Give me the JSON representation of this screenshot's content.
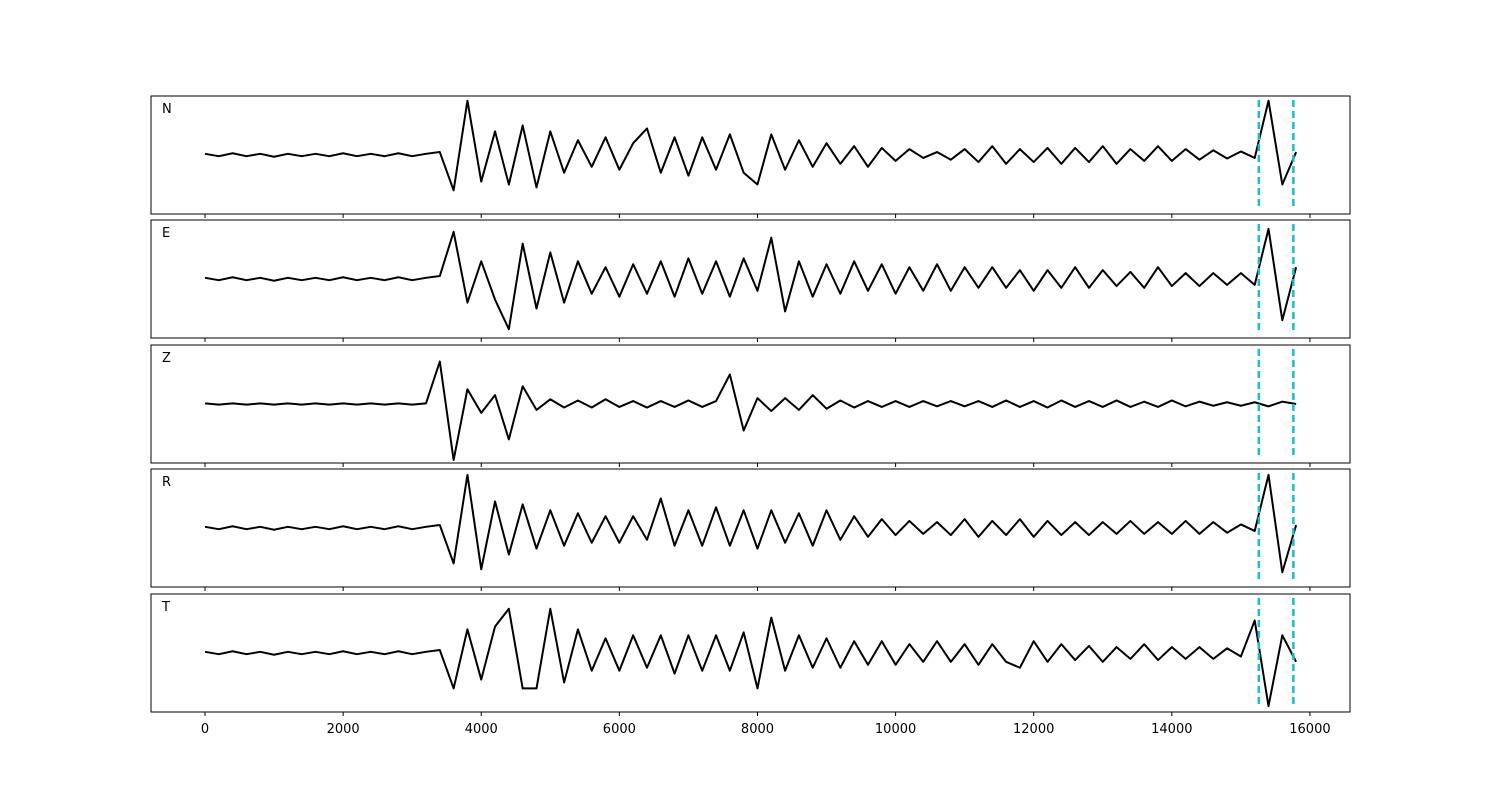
{
  "chart_data": [
    {
      "type": "line",
      "label": "N",
      "color": "#000000",
      "xlim": [
        -782,
        16580
      ],
      "ylim": [
        -1,
        1
      ],
      "vlines": [
        15260,
        15760
      ],
      "vline_color": "#17becf",
      "x": [
        0,
        200,
        400,
        600,
        800,
        1000,
        1200,
        1400,
        1600,
        1800,
        2000,
        2200,
        2400,
        2600,
        2800,
        3000,
        3200,
        3400,
        3600,
        3800,
        4000,
        4200,
        4400,
        4600,
        4800,
        5000,
        5200,
        5400,
        5600,
        5800,
        6000,
        6200,
        6400,
        6600,
        6800,
        7000,
        7200,
        7400,
        7600,
        7800,
        8000,
        8200,
        8400,
        8600,
        8800,
        9000,
        9200,
        9400,
        9600,
        9800,
        10000,
        10200,
        10400,
        10600,
        10800,
        11000,
        11200,
        11400,
        11600,
        11800,
        12000,
        12200,
        12400,
        12600,
        12800,
        13000,
        13200,
        13400,
        13600,
        13800,
        14000,
        14200,
        14400,
        14600,
        14800,
        15000,
        15200,
        15400,
        15600,
        15800
      ],
      "values": [
        0.02,
        -0.02,
        0.03,
        -0.02,
        0.02,
        -0.03,
        0.02,
        -0.02,
        0.02,
        -0.02,
        0.03,
        -0.02,
        0.02,
        -0.02,
        0.03,
        -0.02,
        0.02,
        0.05,
        -0.6,
        0.92,
        -0.45,
        0.4,
        -0.5,
        0.5,
        -0.55,
        0.4,
        -0.3,
        0.25,
        -0.2,
        0.3,
        -0.25,
        0.2,
        0.45,
        -0.3,
        0.3,
        -0.35,
        0.3,
        -0.25,
        0.35,
        -0.3,
        -0.5,
        0.35,
        -0.25,
        0.25,
        -0.2,
        0.2,
        -0.15,
        0.15,
        -0.2,
        0.12,
        -0.1,
        0.1,
        -0.05,
        0.05,
        -0.08,
        0.1,
        -0.12,
        0.15,
        -0.15,
        0.1,
        -0.12,
        0.12,
        -0.15,
        0.12,
        -0.12,
        0.15,
        -0.15,
        0.1,
        -0.1,
        0.15,
        -0.1,
        0.1,
        -0.08,
        0.08,
        -0.06,
        0.06,
        -0.05,
        0.92,
        -0.5,
        0.05
      ]
    },
    {
      "type": "line",
      "label": "E",
      "color": "#000000",
      "xlim": [
        -782,
        16580
      ],
      "ylim": [
        -1,
        1
      ],
      "vlines": [
        15260,
        15760
      ],
      "vline_color": "#17becf",
      "x": [
        0,
        200,
        400,
        600,
        800,
        1000,
        1200,
        1400,
        1600,
        1800,
        2000,
        2200,
        2400,
        2600,
        2800,
        3000,
        3200,
        3400,
        3600,
        3800,
        4000,
        4200,
        4400,
        4600,
        4800,
        5000,
        5200,
        5400,
        5600,
        5800,
        6000,
        6200,
        6400,
        6600,
        6800,
        7000,
        7200,
        7400,
        7600,
        7800,
        8000,
        8200,
        8400,
        8600,
        8800,
        9000,
        9200,
        9400,
        9600,
        9800,
        10000,
        10200,
        10400,
        10600,
        10800,
        11000,
        11200,
        11400,
        11600,
        11800,
        12000,
        12200,
        12400,
        12600,
        12800,
        13000,
        13200,
        13400,
        13600,
        13800,
        14000,
        14200,
        14400,
        14600,
        14800,
        15000,
        15200,
        15400,
        15600,
        15800
      ],
      "values": [
        0.02,
        -0.02,
        0.03,
        -0.02,
        0.02,
        -0.03,
        0.02,
        -0.02,
        0.02,
        -0.02,
        0.03,
        -0.02,
        0.02,
        -0.02,
        0.03,
        -0.02,
        0.02,
        0.05,
        0.8,
        -0.4,
        0.3,
        -0.35,
        -0.85,
        0.6,
        -0.5,
        0.45,
        -0.4,
        0.3,
        -0.25,
        0.2,
        -0.3,
        0.25,
        -0.25,
        0.3,
        -0.3,
        0.35,
        -0.25,
        0.3,
        -0.3,
        0.35,
        -0.2,
        0.7,
        -0.55,
        0.3,
        -0.3,
        0.25,
        -0.25,
        0.3,
        -0.2,
        0.25,
        -0.25,
        0.2,
        -0.2,
        0.25,
        -0.2,
        0.2,
        -0.15,
        0.2,
        -0.15,
        0.15,
        -0.2,
        0.15,
        -0.15,
        0.2,
        -0.15,
        0.15,
        -0.12,
        0.12,
        -0.15,
        0.2,
        -0.12,
        0.1,
        -0.12,
        0.1,
        -0.1,
        0.1,
        -0.1,
        0.85,
        -0.7,
        0.2
      ]
    },
    {
      "type": "line",
      "label": "Z",
      "color": "#000000",
      "xlim": [
        -782,
        16580
      ],
      "ylim": [
        -1,
        1
      ],
      "vlines": [
        15260,
        15760
      ],
      "vline_color": "#17becf",
      "x": [
        0,
        200,
        400,
        600,
        800,
        1000,
        1200,
        1400,
        1600,
        1800,
        2000,
        2200,
        2400,
        2600,
        2800,
        3000,
        3200,
        3400,
        3600,
        3800,
        4000,
        4200,
        4400,
        4600,
        4800,
        5000,
        5200,
        5400,
        5600,
        5800,
        6000,
        6200,
        6400,
        6600,
        6800,
        7000,
        7200,
        7400,
        7600,
        7800,
        8000,
        8200,
        8400,
        8600,
        8800,
        9000,
        9200,
        9400,
        9600,
        9800,
        10000,
        10200,
        10400,
        10600,
        10800,
        11000,
        11200,
        11400,
        11600,
        11800,
        12000,
        12200,
        12400,
        12600,
        12800,
        13000,
        13200,
        13400,
        13600,
        13800,
        14000,
        14200,
        14400,
        14600,
        14800,
        15000,
        15200,
        15400,
        15600,
        15800
      ],
      "values": [
        0.01,
        -0.01,
        0.01,
        -0.01,
        0.01,
        -0.01,
        0.01,
        -0.01,
        0.01,
        -0.01,
        0.01,
        -0.01,
        0.01,
        -0.01,
        0.01,
        -0.01,
        0.01,
        0.72,
        -0.95,
        0.25,
        -0.15,
        0.15,
        -0.6,
        0.3,
        -0.1,
        0.08,
        -0.06,
        0.06,
        -0.06,
        0.08,
        -0.05,
        0.05,
        -0.06,
        0.05,
        -0.05,
        0.06,
        -0.05,
        0.05,
        0.5,
        -0.45,
        0.1,
        -0.12,
        0.1,
        -0.1,
        0.15,
        -0.08,
        0.06,
        -0.06,
        0.05,
        -0.05,
        0.05,
        -0.05,
        0.05,
        -0.04,
        0.05,
        -0.04,
        0.05,
        -0.05,
        0.06,
        -0.05,
        0.05,
        -0.06,
        0.06,
        -0.05,
        0.05,
        -0.05,
        0.06,
        -0.05,
        0.04,
        -0.05,
        0.06,
        -0.04,
        0.04,
        -0.03,
        0.03,
        -0.03,
        0.03,
        -0.04,
        0.04,
        0
      ]
    },
    {
      "type": "line",
      "label": "R",
      "color": "#000000",
      "xlim": [
        -782,
        16580
      ],
      "ylim": [
        -1,
        1
      ],
      "vlines": [
        15260,
        15760
      ],
      "vline_color": "#17becf",
      "x": [
        0,
        200,
        400,
        600,
        800,
        1000,
        1200,
        1400,
        1600,
        1800,
        2000,
        2200,
        2400,
        2600,
        2800,
        3000,
        3200,
        3400,
        3600,
        3800,
        4000,
        4200,
        4400,
        4600,
        4800,
        5000,
        5200,
        5400,
        5600,
        5800,
        6000,
        6200,
        6400,
        6600,
        6800,
        7000,
        7200,
        7400,
        7600,
        7800,
        8000,
        8200,
        8400,
        8600,
        8800,
        9000,
        9200,
        9400,
        9600,
        9800,
        10000,
        10200,
        10400,
        10600,
        10800,
        11000,
        11200,
        11400,
        11600,
        11800,
        12000,
        12200,
        12400,
        12600,
        12800,
        13000,
        13200,
        13400,
        13600,
        13800,
        14000,
        14200,
        14400,
        14600,
        14800,
        15000,
        15200,
        15400,
        15600,
        15800
      ],
      "values": [
        0.02,
        -0.02,
        0.03,
        -0.02,
        0.02,
        -0.03,
        0.02,
        -0.02,
        0.02,
        -0.02,
        0.03,
        -0.02,
        0.02,
        -0.02,
        0.03,
        -0.02,
        0.02,
        0.05,
        -0.6,
        0.9,
        -0.7,
        0.45,
        -0.45,
        0.4,
        -0.35,
        0.3,
        -0.3,
        0.25,
        -0.25,
        0.2,
        -0.25,
        0.2,
        -0.2,
        0.5,
        -0.3,
        0.3,
        -0.3,
        0.35,
        -0.3,
        0.3,
        -0.35,
        0.3,
        -0.25,
        0.25,
        -0.3,
        0.3,
        -0.2,
        0.2,
        -0.15,
        0.15,
        -0.12,
        0.12,
        -0.1,
        0.1,
        -0.12,
        0.15,
        -0.15,
        0.12,
        -0.12,
        0.15,
        -0.15,
        0.12,
        -0.12,
        0.1,
        -0.12,
        0.1,
        -0.1,
        0.12,
        -0.1,
        0.1,
        -0.1,
        0.12,
        -0.1,
        0.1,
        -0.08,
        0.06,
        -0.05,
        0.9,
        -0.75,
        0.05
      ]
    },
    {
      "type": "line",
      "label": "T",
      "color": "#000000",
      "xlim": [
        -782,
        16580
      ],
      "ylim": [
        -1,
        1
      ],
      "vlines": [
        15260,
        15760
      ],
      "vline_color": "#17becf",
      "xticks": [
        0,
        2000,
        4000,
        6000,
        8000,
        10000,
        12000,
        14000,
        16000
      ],
      "x": [
        0,
        200,
        400,
        600,
        800,
        1000,
        1200,
        1400,
        1600,
        1800,
        2000,
        2200,
        2400,
        2600,
        2800,
        3000,
        3200,
        3400,
        3600,
        3800,
        4000,
        4200,
        4400,
        4600,
        4800,
        5000,
        5200,
        5400,
        5600,
        5800,
        6000,
        6200,
        6400,
        6600,
        6800,
        7000,
        7200,
        7400,
        7600,
        7800,
        8000,
        8200,
        8400,
        8600,
        8800,
        9000,
        9200,
        9400,
        9600,
        9800,
        10000,
        10200,
        10400,
        10600,
        10800,
        11000,
        11200,
        11400,
        11600,
        11800,
        12000,
        12200,
        12400,
        12600,
        12800,
        13000,
        13200,
        13400,
        13600,
        13800,
        14000,
        14200,
        14400,
        14600,
        14800,
        15000,
        15200,
        15400,
        15600,
        15800
      ],
      "values": [
        0.02,
        -0.02,
        0.03,
        -0.02,
        0.02,
        -0.03,
        0.02,
        -0.02,
        0.02,
        -0.02,
        0.03,
        -0.02,
        0.02,
        -0.02,
        0.03,
        -0.02,
        0.02,
        0.05,
        -0.6,
        0.4,
        -0.45,
        0.45,
        0.75,
        -0.6,
        -0.6,
        0.75,
        -0.5,
        0.4,
        -0.3,
        0.25,
        -0.3,
        0.3,
        -0.25,
        0.3,
        -0.35,
        0.3,
        -0.3,
        0.3,
        -0.3,
        0.35,
        -0.6,
        0.6,
        -0.3,
        0.3,
        -0.25,
        0.25,
        -0.25,
        0.2,
        -0.2,
        0.2,
        -0.2,
        0.15,
        -0.15,
        0.2,
        -0.15,
        0.15,
        -0.2,
        0.15,
        -0.15,
        -0.25,
        0.2,
        -0.15,
        0.15,
        -0.12,
        0.12,
        -0.15,
        0.1,
        -0.1,
        0.15,
        -0.12,
        0.1,
        -0.1,
        0.1,
        -0.1,
        0.08,
        -0.06,
        0.55,
        -0.9,
        0.3,
        -0.15
      ]
    }
  ]
}
